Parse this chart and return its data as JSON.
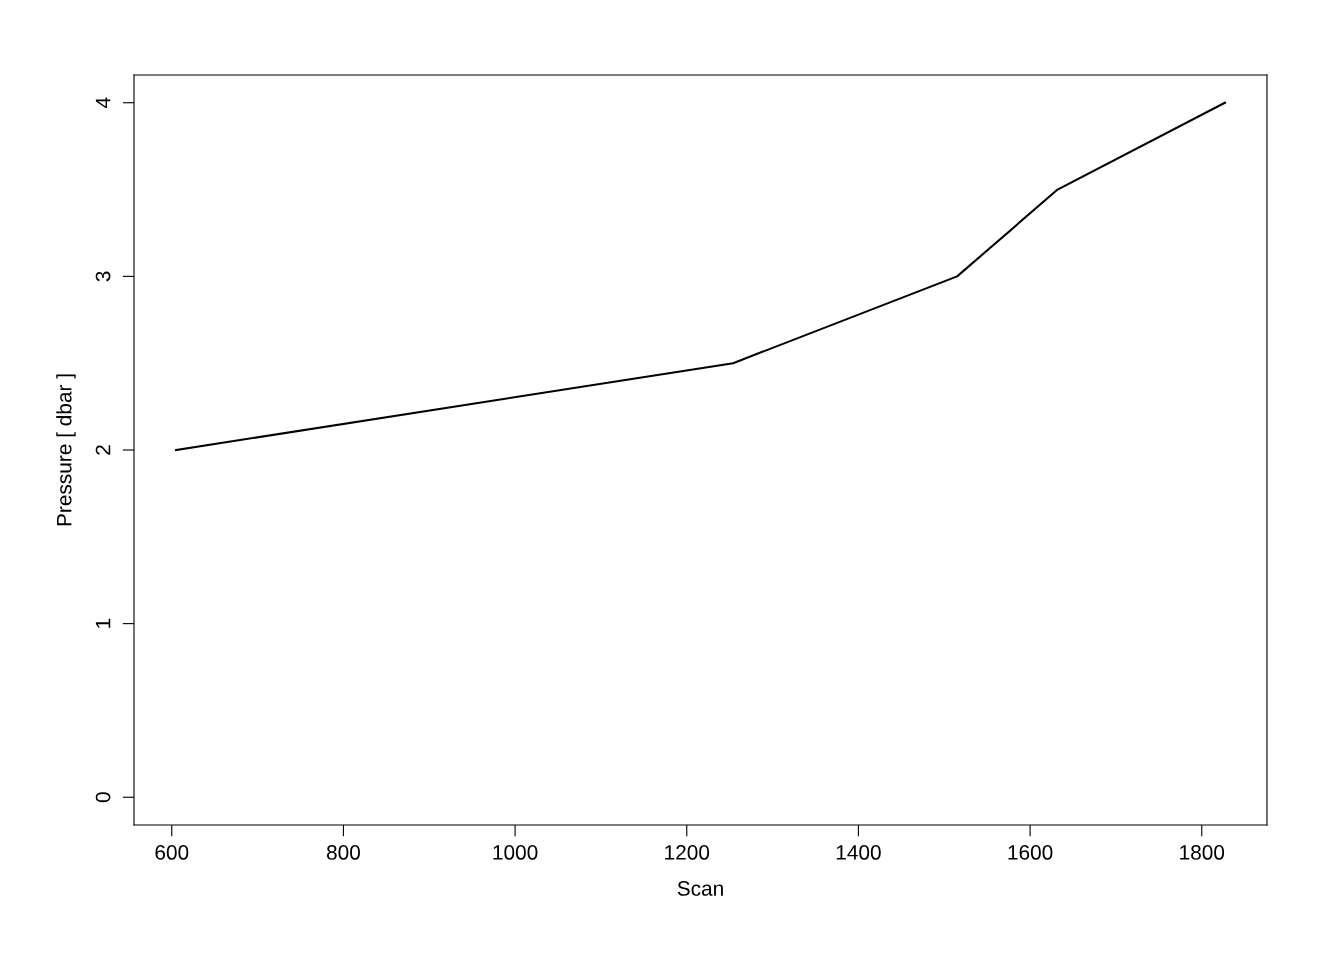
{
  "chart_data": {
    "type": "line",
    "xlabel": "Scan",
    "ylabel": "Pressure [ dbar ]",
    "x": [
      605,
      1254,
      1515,
      1632,
      1827
    ],
    "series": [
      {
        "color": "#000000",
        "values": [
          2.0,
          2.5,
          3.0,
          3.5,
          4.0
        ]
      }
    ],
    "xlim": [
      556,
      1876
    ],
    "ylim": [
      -0.16,
      4.16
    ],
    "xticks": [
      600,
      800,
      1000,
      1200,
      1400,
      1600,
      1800
    ],
    "yticks": [
      0,
      1,
      2,
      3,
      4
    ],
    "grid": false,
    "legend": false,
    "marker": "none",
    "line_style": "solid"
  }
}
